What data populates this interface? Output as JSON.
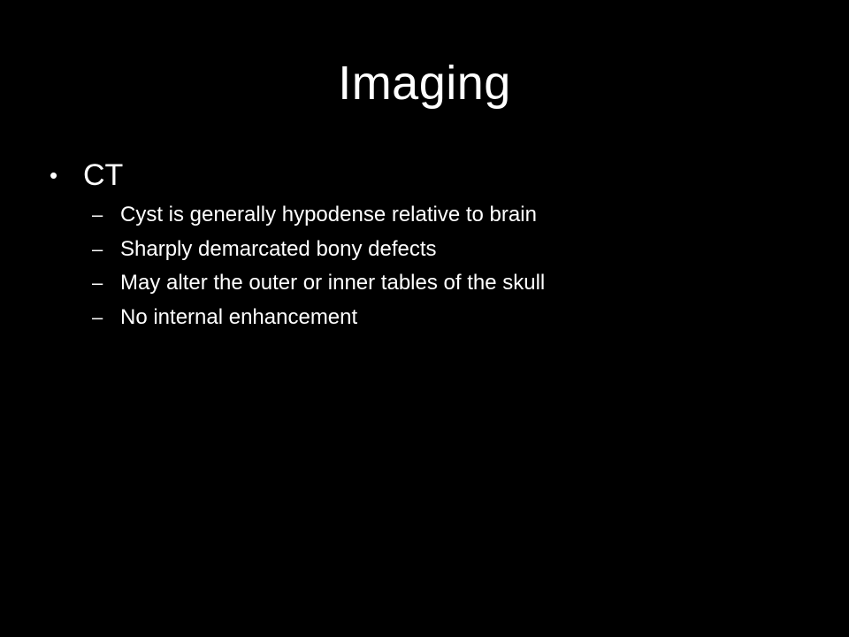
{
  "slide": {
    "title": "Imaging",
    "bullet": {
      "marker": "•",
      "text": "CT",
      "subitems": [
        {
          "marker": "–",
          "text": "Cyst is generally hypodense relative to brain"
        },
        {
          "marker": "–",
          "text": "Sharply demarcated bony defects"
        },
        {
          "marker": "–",
          "text": "May alter the outer or inner tables of the skull"
        },
        {
          "marker": "–",
          "text": "No internal enhancement"
        }
      ]
    }
  },
  "colors": {
    "background": "#000000",
    "text": "#ffffff"
  }
}
